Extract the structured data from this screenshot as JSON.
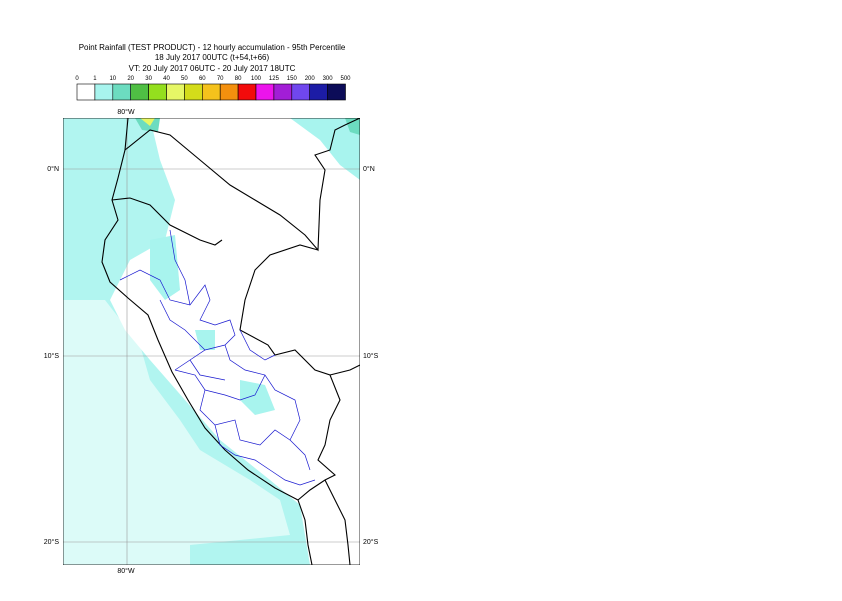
{
  "header": {
    "title_lines": [
      "Point Rainfall (TEST PRODUCT) - 12 hourly accumulation - 95th Percentile",
      "18 July 2017 00UTC (t+54,t+66)",
      "VT: 20 July 2017 06UTC - 20 July 2017 18UTC"
    ]
  },
  "legend": {
    "labels": [
      "0",
      "1",
      "10",
      "20",
      "30",
      "40",
      "50",
      "60",
      "70",
      "80",
      "100",
      "125",
      "150",
      "200",
      "300",
      "500"
    ],
    "colors": [
      "#ffffff",
      "#a8f4ee",
      "#6cdcc0",
      "#4fbf44",
      "#94df1e",
      "#e6f766",
      "#d4dc1a",
      "#f5c21c",
      "#f4900e",
      "#f30b0b",
      "#ec14ec",
      "#a21ed6",
      "#7047ee",
      "#1c1ca6",
      "#0c0c58"
    ]
  },
  "map": {
    "lon_labels": [
      "80°W"
    ],
    "lat_labels": [
      "0°N",
      "10°S",
      "20°S"
    ]
  }
}
